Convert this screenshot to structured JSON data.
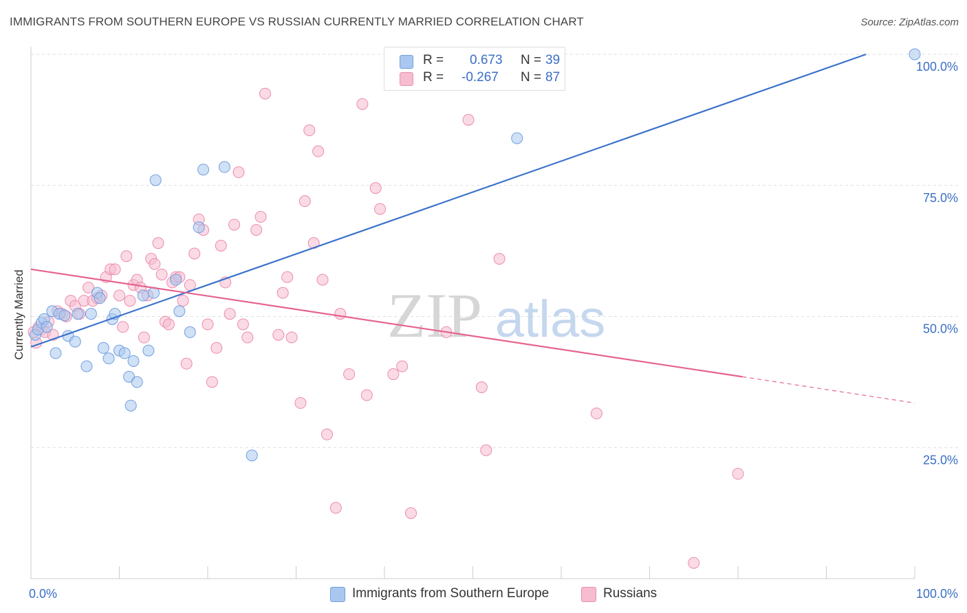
{
  "header": {
    "title": "IMMIGRANTS FROM SOUTHERN EUROPE VS RUSSIAN CURRENTLY MARRIED CORRELATION CHART",
    "source": "Source: ZipAtlas.com"
  },
  "watermark": {
    "zip": "ZIP",
    "atlas": "atlas"
  },
  "legend": {
    "rows": [
      {
        "r_label": "R =",
        "r_value": "0.673",
        "n_label": "N =",
        "n_value": "39"
      },
      {
        "r_label": "R =",
        "r_value": "-0.267",
        "n_label": "N =",
        "n_value": "87"
      }
    ],
    "bottom": [
      {
        "label": "Immigrants from Southern Europe"
      },
      {
        "label": "Russians"
      }
    ]
  },
  "colors": {
    "blue_fill": "#aac8ef",
    "blue_stroke": "#6f9ee0",
    "blue_line": "#3a72cc",
    "pink_fill": "#f6bcd0",
    "pink_stroke": "#ec8cae",
    "pink_line": "#e5638f",
    "tick_label": "#3a6fc4"
  },
  "chart_data": {
    "type": "scatter",
    "title": "IMMIGRANTS FROM SOUTHERN EUROPE VS RUSSIAN CURRENTLY MARRIED CORRELATION CHART",
    "xlabel": "",
    "ylabel": "Currently Married",
    "xlim": [
      0,
      100
    ],
    "ylim": [
      0,
      100
    ],
    "x_tick_labels": [
      "0.0%",
      "100.0%"
    ],
    "y_ticks": [
      25,
      50,
      75,
      100
    ],
    "y_tick_labels": [
      "25.0%",
      "50.0%",
      "75.0%",
      "100.0%"
    ],
    "grid": true,
    "legend_placement": "top-center",
    "series": [
      {
        "name": "Immigrants from Southern Europe",
        "color": "#aac8ef",
        "points": [
          [
            0.5,
            46.5
          ],
          [
            0.8,
            47.5
          ],
          [
            1.2,
            48.8
          ],
          [
            1.5,
            49.5
          ],
          [
            1.8,
            48
          ],
          [
            2.4,
            51
          ],
          [
            2.8,
            43
          ],
          [
            3.2,
            50.5
          ],
          [
            3.8,
            50.2
          ],
          [
            4.2,
            46.3
          ],
          [
            5,
            45.2
          ],
          [
            5.3,
            50.5
          ],
          [
            6.3,
            40.5
          ],
          [
            6.8,
            50.5
          ],
          [
            7.5,
            54.5
          ],
          [
            7.8,
            53.5
          ],
          [
            8.2,
            44
          ],
          [
            8.8,
            42
          ],
          [
            9.2,
            49.5
          ],
          [
            9.5,
            50.5
          ],
          [
            10,
            43.5
          ],
          [
            10.6,
            43
          ],
          [
            11.1,
            38.5
          ],
          [
            11.6,
            41.5
          ],
          [
            12,
            37.5
          ],
          [
            11.3,
            33
          ],
          [
            12.7,
            54
          ],
          [
            13.3,
            43.5
          ],
          [
            13.9,
            54.5
          ],
          [
            14.1,
            76
          ],
          [
            16.4,
            57
          ],
          [
            16.8,
            51
          ],
          [
            18,
            47
          ],
          [
            19,
            67
          ],
          [
            19.5,
            78
          ],
          [
            21.9,
            78.5
          ],
          [
            25,
            23.5
          ],
          [
            55,
            84
          ],
          [
            100,
            100
          ]
        ],
        "trend": {
          "x": [
            0,
            94.5
          ],
          "y": [
            44.2,
            100
          ]
        }
      },
      {
        "name": "Russians",
        "color": "#f6bcd0",
        "points": [
          [
            0.3,
            47
          ],
          [
            0.6,
            45
          ],
          [
            0.9,
            48
          ],
          [
            1.2,
            47.5
          ],
          [
            1.6,
            47
          ],
          [
            2,
            49
          ],
          [
            2.5,
            46.5
          ],
          [
            3,
            51
          ],
          [
            3.5,
            50.5
          ],
          [
            4,
            50
          ],
          [
            4.5,
            53
          ],
          [
            5,
            52
          ],
          [
            5.5,
            50.5
          ],
          [
            6,
            53
          ],
          [
            6.5,
            55.5
          ],
          [
            7,
            53
          ],
          [
            7.5,
            53.5
          ],
          [
            8,
            54
          ],
          [
            8.5,
            57.5
          ],
          [
            9,
            59
          ],
          [
            9.5,
            59
          ],
          [
            10,
            54
          ],
          [
            10.4,
            48
          ],
          [
            10.8,
            61.5
          ],
          [
            11.2,
            53
          ],
          [
            11.6,
            56
          ],
          [
            12,
            57
          ],
          [
            12.4,
            55.5
          ],
          [
            12.8,
            46
          ],
          [
            13.2,
            54
          ],
          [
            13.6,
            61
          ],
          [
            14,
            60
          ],
          [
            14.4,
            64
          ],
          [
            14.8,
            58
          ],
          [
            15.2,
            49
          ],
          [
            15.6,
            48.5
          ],
          [
            16,
            56.5
          ],
          [
            16.4,
            57.5
          ],
          [
            16.8,
            57.5
          ],
          [
            17.2,
            53
          ],
          [
            17.6,
            41
          ],
          [
            18,
            56
          ],
          [
            18.5,
            62
          ],
          [
            19,
            68.5
          ],
          [
            19.5,
            66.5
          ],
          [
            20,
            48.5
          ],
          [
            20.5,
            37.5
          ],
          [
            21,
            44
          ],
          [
            21.5,
            63.5
          ],
          [
            22,
            56.5
          ],
          [
            22.5,
            50.5
          ],
          [
            23,
            67.5
          ],
          [
            23.5,
            77.5
          ],
          [
            24,
            48.5
          ],
          [
            24.5,
            46
          ],
          [
            25.5,
            66.5
          ],
          [
            26,
            69
          ],
          [
            26.5,
            92.5
          ],
          [
            28,
            46.5
          ],
          [
            28.5,
            54.5
          ],
          [
            29,
            57.5
          ],
          [
            29.5,
            46
          ],
          [
            30.5,
            33.5
          ],
          [
            31,
            72
          ],
          [
            31.5,
            85.5
          ],
          [
            32,
            64
          ],
          [
            32.5,
            81.5
          ],
          [
            33,
            57
          ],
          [
            33.5,
            27.5
          ],
          [
            34.5,
            13.5
          ],
          [
            35,
            50.5
          ],
          [
            36,
            39
          ],
          [
            37.5,
            90.5
          ],
          [
            38,
            35
          ],
          [
            39,
            74.5
          ],
          [
            39.5,
            70.5
          ],
          [
            41,
            39
          ],
          [
            42,
            40.5
          ],
          [
            43,
            12.5
          ],
          [
            47,
            47
          ],
          [
            49.5,
            87.5
          ],
          [
            51,
            36.5
          ],
          [
            51.5,
            24.5
          ],
          [
            53,
            61
          ],
          [
            64,
            31.5
          ],
          [
            80,
            20
          ],
          [
            75,
            3
          ]
        ],
        "trend": {
          "x": [
            0,
            80.5
          ],
          "y": [
            59,
            38.5
          ]
        },
        "trend_extension": {
          "x": [
            80.5,
            100
          ],
          "y": [
            38.5,
            33.5
          ]
        }
      }
    ]
  }
}
